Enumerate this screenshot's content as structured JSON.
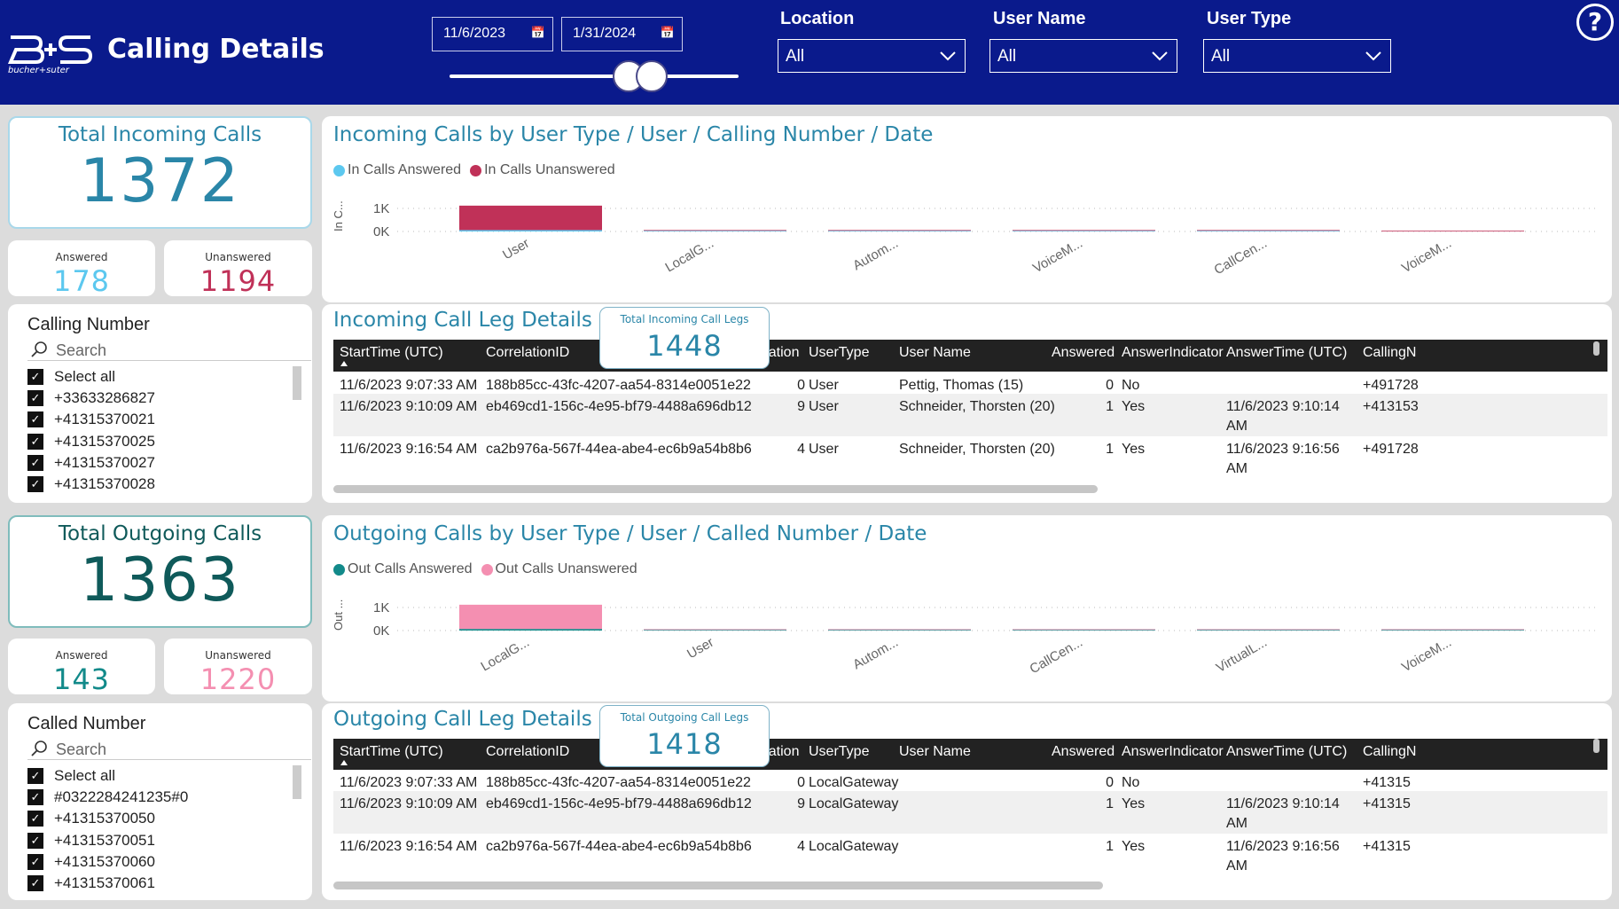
{
  "header": {
    "title": "Calling Details",
    "brand": "bucher+suter",
    "date_start": "11/6/2023",
    "date_end": "1/31/2024",
    "filters": [
      {
        "label": "Location",
        "value": "All"
      },
      {
        "label": "User Name",
        "value": "All"
      },
      {
        "label": "User Type",
        "value": "All"
      }
    ],
    "help_icon": "help-icon"
  },
  "incoming": {
    "kpi_title": "Total Incoming Calls",
    "kpi_value": "1372",
    "answered_label": "Answered",
    "answered_value": "178",
    "unanswered_label": "Unanswered",
    "unanswered_value": "1194",
    "slicer": {
      "title": "Calling Number",
      "search_placeholder": "Search",
      "items": [
        "Select all",
        "+33633286827",
        "+41315370021",
        "+41315370025",
        "+41315370027",
        "+41315370028"
      ]
    },
    "chart_title": "Incoming Calls by User Type / User / Calling Number / Date",
    "legs_title": "Total Incoming Call Legs",
    "legs_value": "1448",
    "table_title": "Incoming Call Leg Details",
    "columns": [
      "StartTime (UTC)",
      "CorrelationID",
      "Duration",
      "UserType",
      "User Name",
      "Answered",
      "AnswerIndicator",
      "AnswerTime (UTC)",
      "CallingN"
    ],
    "rows": [
      [
        "11/6/2023 9:07:33 AM",
        "188b85cc-43fc-4207-aa54-8314e0051e22",
        "0",
        "User",
        "Pettig, Thomas (15)",
        "0",
        "No",
        "",
        "+491728"
      ],
      [
        "11/6/2023 9:10:09 AM",
        "eb469cd1-156c-4e95-bf79-4488a696db12",
        "9",
        "User",
        "Schneider, Thorsten (20)",
        "1",
        "Yes",
        "11/6/2023 9:10:14 AM",
        "+413153"
      ],
      [
        "11/6/2023 9:16:54 AM",
        "ca2b976a-567f-44ea-abe4-ec6b9a54b8b6",
        "4",
        "User",
        "Schneider, Thorsten (20)",
        "1",
        "Yes",
        "11/6/2023 9:16:56 AM",
        "+491728"
      ]
    ]
  },
  "outgoing": {
    "kpi_title": "Total Outgoing Calls",
    "kpi_value": "1363",
    "answered_label": "Answered",
    "answered_value": "143",
    "unanswered_label": "Unanswered",
    "unanswered_value": "1220",
    "slicer": {
      "title": "Called Number",
      "search_placeholder": "Search",
      "items": [
        "Select all",
        "#0322284241235#0",
        "+41315370050",
        "+41315370051",
        "+41315370060",
        "+41315370061"
      ]
    },
    "chart_title": "Outgoing Calls by User Type / User / Called Number / Date",
    "legs_title": "Total Outgoing Call Legs",
    "legs_value": "1418",
    "table_title": "Outgoing Call Leg Details",
    "columns": [
      "StartTime (UTC)",
      "CorrelationID",
      "Duration",
      "UserType",
      "User Name",
      "Answered",
      "AnswerIndicator",
      "AnswerTime (UTC)",
      "CallingN"
    ],
    "rows": [
      [
        "11/6/2023 9:07:33 AM",
        "188b85cc-43fc-4207-aa54-8314e0051e22",
        "0",
        "LocalGateway",
        "",
        "0",
        "No",
        "",
        "+41315"
      ],
      [
        "11/6/2023 9:10:09 AM",
        "eb469cd1-156c-4e95-bf79-4488a696db12",
        "9",
        "LocalGateway",
        "",
        "1",
        "Yes",
        "11/6/2023 9:10:14 AM",
        "+41315"
      ],
      [
        "11/6/2023 9:16:54 AM",
        "ca2b976a-567f-44ea-abe4-ec6b9a54b8b6",
        "4",
        "LocalGateway",
        "",
        "1",
        "Yes",
        "11/6/2023 9:16:56 AM",
        "+41315"
      ]
    ]
  },
  "colors": {
    "header_bg": "#0a1a8c",
    "in_answered": "#5cc8ef",
    "in_unanswered": "#c03158",
    "out_answered": "#128a8a",
    "out_unanswered": "#f48fb1",
    "title_teal": "#2a86a8",
    "kpi_dark_teal": "#0f5a5a"
  },
  "chart_data": [
    {
      "type": "bar",
      "stacked": true,
      "title": "Incoming Calls by User Type / User / Calling Number / Date",
      "ylabel": "In C...",
      "yticks": [
        "0K",
        "1K"
      ],
      "categories": [
        "User",
        "LocalG...",
        "Autom...",
        "VoiceM...",
        "CallCen...",
        "VoiceM..."
      ],
      "series": [
        {
          "name": "In Calls Answered",
          "color": "#5cc8ef",
          "values": [
            60,
            5,
            2,
            1,
            1,
            0
          ]
        },
        {
          "name": "In Calls Unanswered",
          "color": "#c03158",
          "values": [
            1060,
            20,
            8,
            3,
            2,
            1
          ]
        }
      ],
      "ylim": [
        0,
        1400
      ]
    },
    {
      "type": "bar",
      "stacked": true,
      "title": "Outgoing Calls by User Type / User / Called Number / Date",
      "ylabel": "Out ...",
      "yticks": [
        "0K",
        "1K"
      ],
      "categories": [
        "LocalG...",
        "User",
        "Autom...",
        "CallCen...",
        "VirtualL...",
        "VoiceM..."
      ],
      "series": [
        {
          "name": "Out Calls Answered",
          "color": "#128a8a",
          "values": [
            70,
            10,
            3,
            2,
            1,
            1
          ]
        },
        {
          "name": "Out Calls Unanswered",
          "color": "#f48fb1",
          "values": [
            1050,
            12,
            5,
            3,
            2,
            1
          ]
        }
      ],
      "ylim": [
        0,
        1400
      ]
    }
  ]
}
